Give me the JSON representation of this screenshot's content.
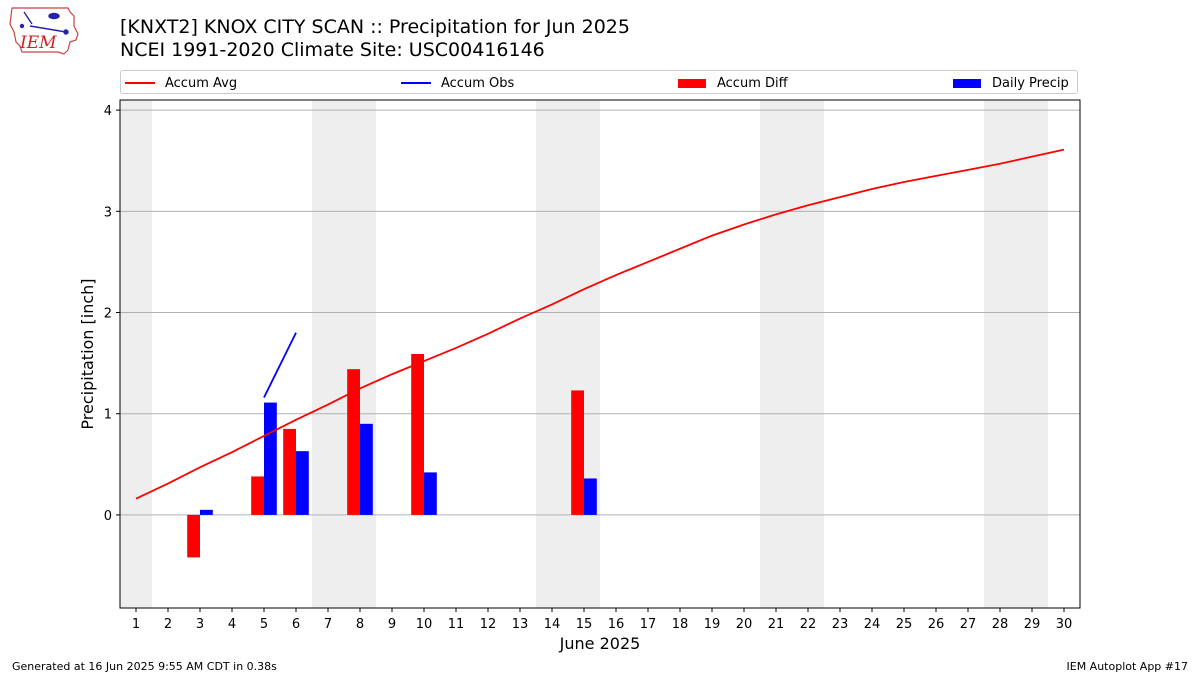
{
  "header": {
    "logo_text": "IEM",
    "title_line1": "[KNXT2] KNOX CITY SCAN :: Precipitation for Jun 2025",
    "title_line2": "NCEI 1991-2020 Climate Site: USC00416146"
  },
  "legend": {
    "items": [
      {
        "label": "Accum Avg",
        "kind": "line",
        "color": "#ff0000"
      },
      {
        "label": "Accum Obs",
        "kind": "line",
        "color": "#0000ff"
      },
      {
        "label": "Accum Diff",
        "kind": "bar",
        "color": "#ff0000"
      },
      {
        "label": "Daily Precip",
        "kind": "bar",
        "color": "#0000ff"
      }
    ]
  },
  "footer": {
    "left": "Generated at 16 Jun 2025 9:55 AM CDT in 0.38s",
    "right": "IEM Autoplot App #17"
  },
  "chart_data": {
    "type": "bar",
    "xlabel": "June 2025",
    "ylabel": "Precipitation [inch]",
    "x": [
      1,
      2,
      3,
      4,
      5,
      6,
      7,
      8,
      9,
      10,
      11,
      12,
      13,
      14,
      15,
      16,
      17,
      18,
      19,
      20,
      21,
      22,
      23,
      24,
      25,
      26,
      27,
      28,
      29,
      30
    ],
    "xlim": [
      0.5,
      30.5
    ],
    "ylim": [
      -0.92,
      4.1
    ],
    "yticks": [
      0,
      1,
      2,
      3,
      4
    ],
    "grid": "y",
    "legend_position": "top",
    "weekend_days": [
      1,
      7,
      8,
      14,
      15,
      21,
      22,
      28,
      29
    ],
    "series": [
      {
        "name": "Accum Avg",
        "kind": "line",
        "color": "#ff0000",
        "values": [
          0.16,
          0.31,
          0.47,
          0.62,
          0.78,
          0.94,
          1.09,
          1.25,
          1.39,
          1.52,
          1.65,
          1.79,
          1.94,
          2.08,
          2.23,
          2.37,
          2.5,
          2.63,
          2.76,
          2.87,
          2.97,
          3.06,
          3.14,
          3.22,
          3.29,
          3.35,
          3.41,
          3.47,
          3.54,
          3.61
        ]
      },
      {
        "name": "Accum Obs",
        "kind": "line",
        "color": "#0000ff",
        "x": [
          5,
          6
        ],
        "values": [
          1.16,
          1.8
        ]
      },
      {
        "name": "Accum Diff",
        "kind": "bar",
        "color": "#ff0000",
        "x": [
          3,
          5,
          6,
          8,
          10,
          15
        ],
        "values": [
          -0.42,
          0.38,
          0.85,
          1.44,
          1.59,
          1.23
        ]
      },
      {
        "name": "Daily Precip",
        "kind": "bar",
        "color": "#0000ff",
        "x": [
          3,
          5,
          6,
          8,
          10,
          15
        ],
        "values": [
          0.05,
          1.11,
          0.63,
          0.9,
          0.42,
          0.36
        ]
      }
    ]
  }
}
